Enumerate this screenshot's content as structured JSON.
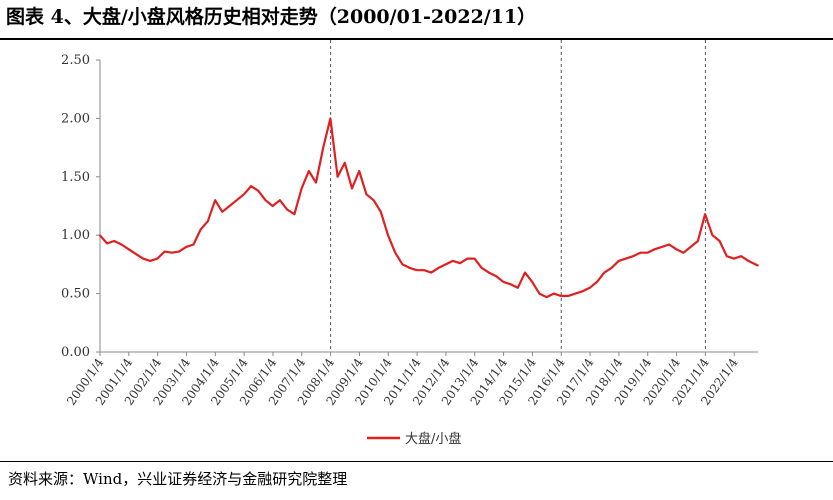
{
  "title": "图表 4、大盘/小盘风格历史相对走势（2000/01-2022/11）",
  "source": "资料来源：Wind，兴业证券经济与金融研究院整理",
  "chart_data": {
    "type": "line",
    "ylim": [
      0,
      2.5
    ],
    "yticks": [
      "0.00",
      "0.50",
      "1.00",
      "1.50",
      "2.00",
      "2.50"
    ],
    "x_tick_labels": [
      "2000/1/4",
      "2001/1/4",
      "2002/1/4",
      "2003/1/4",
      "2004/1/4",
      "2005/1/4",
      "2006/1/4",
      "2007/1/4",
      "2008/1/4",
      "2009/1/4",
      "2010/1/4",
      "2011/1/4",
      "2012/1/4",
      "2013/1/4",
      "2014/1/4",
      "2015/1/4",
      "2016/1/4",
      "2017/1/4",
      "2018/1/4",
      "2019/1/4",
      "2020/1/4",
      "2021/1/4",
      "2022/1/4"
    ],
    "x_range": [
      "2000/1/4",
      "2022/11"
    ],
    "grid": false,
    "legend_position": "bottom-center",
    "vertical_markers": [
      "2008/1/4",
      "2016/1/4",
      "2021/1/4"
    ],
    "series": [
      {
        "name": "大盘/小盘",
        "color": "#e02020",
        "x": [
          "2000/1",
          "2000/4",
          "2000/7",
          "2000/10",
          "2001/1",
          "2001/4",
          "2001/7",
          "2001/10",
          "2002/1",
          "2002/4",
          "2002/7",
          "2002/10",
          "2003/1",
          "2003/4",
          "2003/7",
          "2003/10",
          "2004/1",
          "2004/4",
          "2004/7",
          "2004/10",
          "2005/1",
          "2005/4",
          "2005/7",
          "2005/10",
          "2006/1",
          "2006/4",
          "2006/7",
          "2006/10",
          "2007/1",
          "2007/4",
          "2007/7",
          "2007/10",
          "2008/1",
          "2008/4",
          "2008/7",
          "2008/10",
          "2009/1",
          "2009/4",
          "2009/7",
          "2009/10",
          "2010/1",
          "2010/4",
          "2010/7",
          "2010/10",
          "2011/1",
          "2011/4",
          "2011/7",
          "2011/10",
          "2012/1",
          "2012/4",
          "2012/7",
          "2012/10",
          "2013/1",
          "2013/4",
          "2013/7",
          "2013/10",
          "2014/1",
          "2014/4",
          "2014/7",
          "2014/10",
          "2015/1",
          "2015/4",
          "2015/7",
          "2015/10",
          "2016/1",
          "2016/4",
          "2016/7",
          "2016/10",
          "2017/1",
          "2017/4",
          "2017/7",
          "2017/10",
          "2018/1",
          "2018/4",
          "2018/7",
          "2018/10",
          "2019/1",
          "2019/4",
          "2019/7",
          "2019/10",
          "2020/1",
          "2020/4",
          "2020/7",
          "2020/10",
          "2021/1",
          "2021/4",
          "2021/7",
          "2021/10",
          "2022/1",
          "2022/4",
          "2022/7",
          "2022/11"
        ],
        "values": [
          1.0,
          0.93,
          0.95,
          0.92,
          0.88,
          0.84,
          0.8,
          0.78,
          0.8,
          0.86,
          0.85,
          0.86,
          0.9,
          0.92,
          1.05,
          1.12,
          1.3,
          1.2,
          1.25,
          1.3,
          1.35,
          1.42,
          1.38,
          1.3,
          1.25,
          1.3,
          1.22,
          1.18,
          1.4,
          1.55,
          1.45,
          1.75,
          2.0,
          1.5,
          1.62,
          1.4,
          1.55,
          1.35,
          1.3,
          1.2,
          1.0,
          0.85,
          0.75,
          0.72,
          0.7,
          0.7,
          0.68,
          0.72,
          0.75,
          0.78,
          0.76,
          0.8,
          0.8,
          0.72,
          0.68,
          0.65,
          0.6,
          0.58,
          0.55,
          0.68,
          0.6,
          0.5,
          0.47,
          0.5,
          0.48,
          0.48,
          0.5,
          0.52,
          0.55,
          0.6,
          0.68,
          0.72,
          0.78,
          0.8,
          0.82,
          0.85,
          0.85,
          0.88,
          0.9,
          0.92,
          0.88,
          0.85,
          0.9,
          0.95,
          1.18,
          1.0,
          0.95,
          0.82,
          0.8,
          0.82,
          0.78,
          0.74
        ]
      }
    ]
  }
}
